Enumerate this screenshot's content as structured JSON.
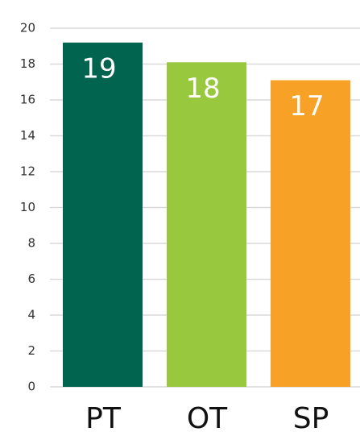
{
  "chart_data": {
    "type": "bar",
    "categories": [
      "PT",
      "OT",
      "SP"
    ],
    "values": [
      19.2,
      18.1,
      17.1
    ],
    "value_labels": [
      "19",
      "18",
      "17"
    ],
    "colors": [
      "#00644f",
      "#97c83e",
      "#f7a126"
    ],
    "ylim": [
      0,
      20
    ],
    "yticks": [
      0,
      2,
      4,
      6,
      8,
      10,
      12,
      14,
      16,
      18,
      20
    ],
    "grid": true
  }
}
